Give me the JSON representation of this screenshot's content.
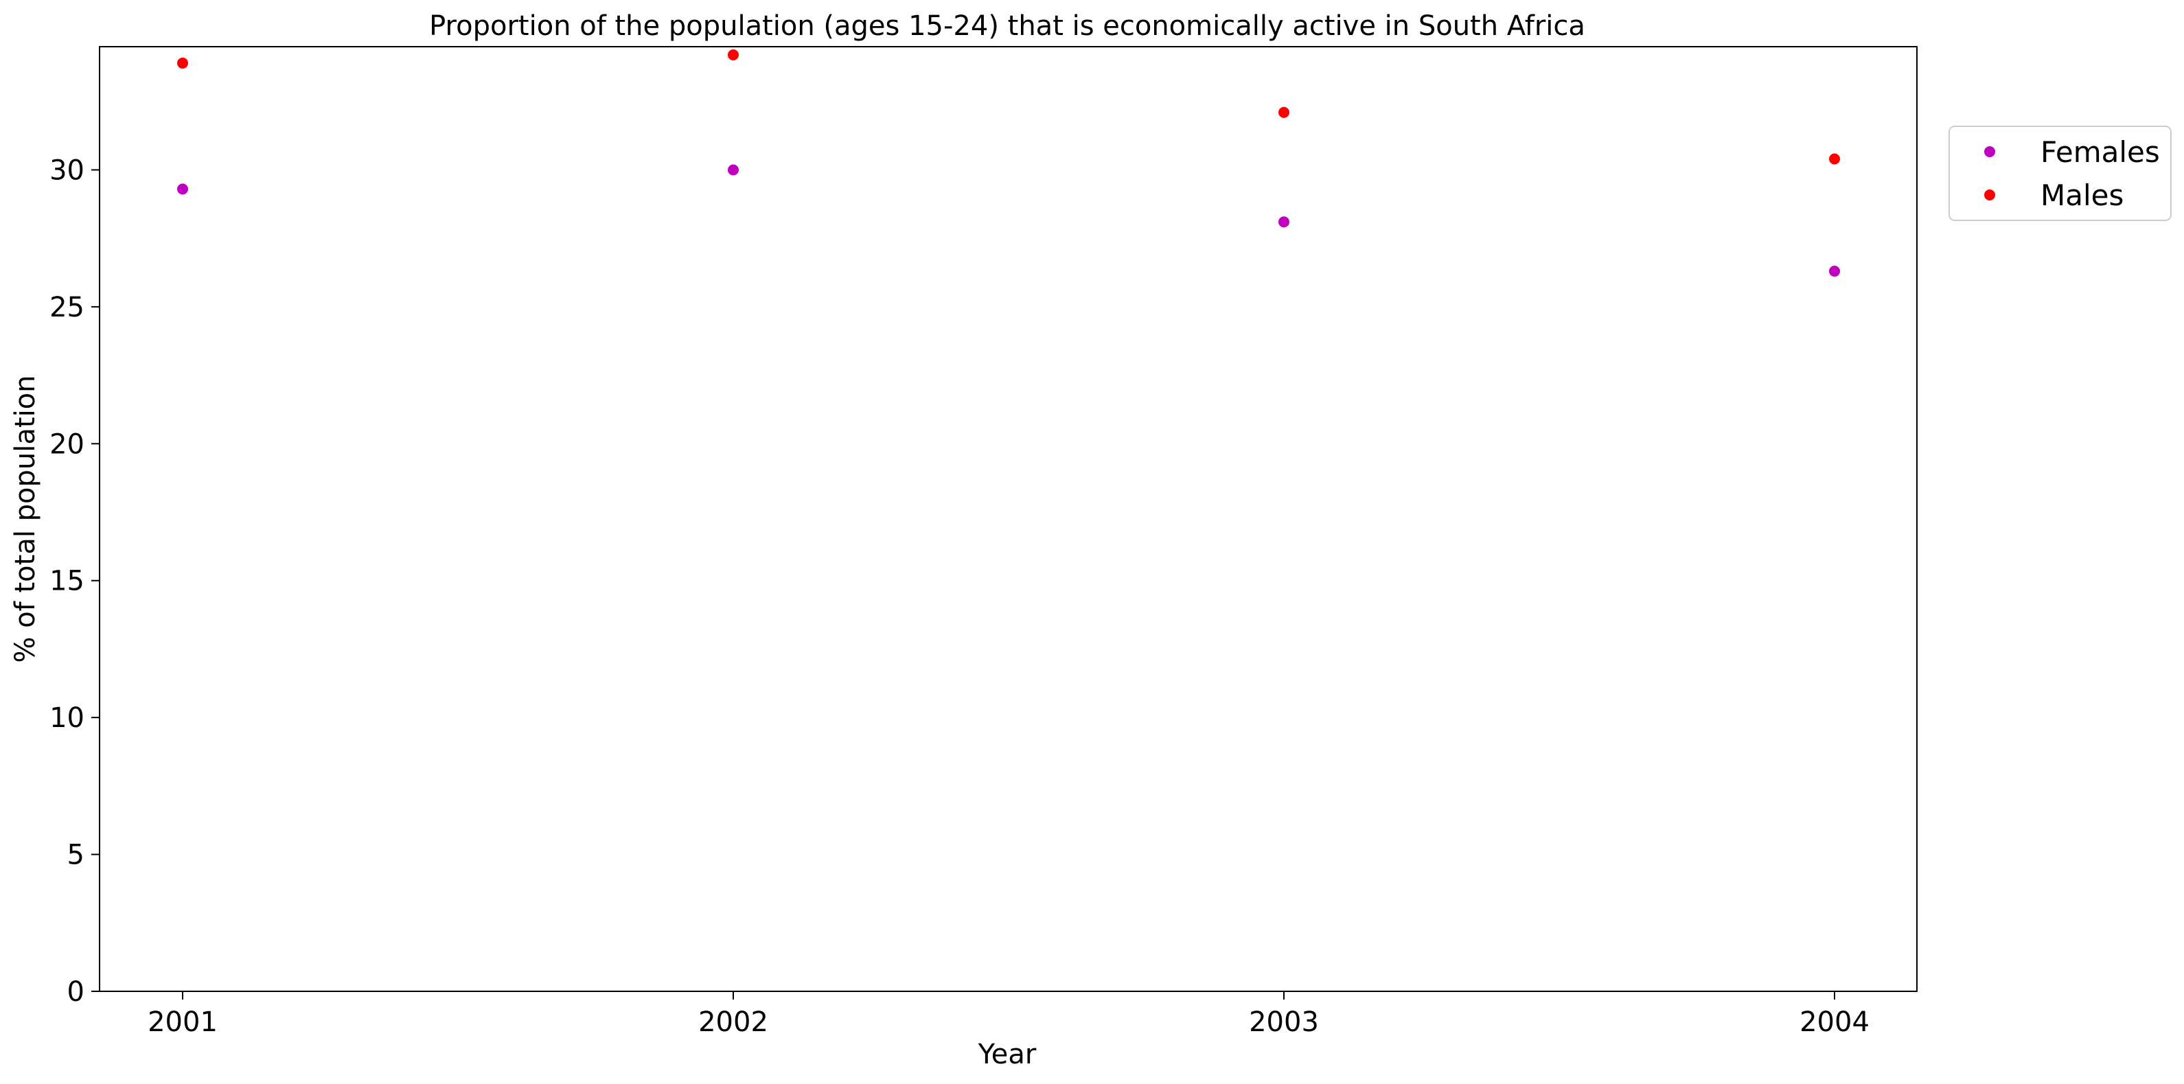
{
  "chart_data": {
    "type": "scatter",
    "title": "Proportion of the population (ages 15-24) that is economically active in South Africa",
    "xlabel": "Year",
    "ylabel": "% of total population",
    "categories": [
      "2001",
      "2002",
      "2003",
      "2004"
    ],
    "x_ticks": [
      "2001",
      "2002",
      "2003",
      "2004"
    ],
    "y_ticks": [
      "0",
      "5",
      "10",
      "15",
      "20",
      "25",
      "30"
    ],
    "ylim": [
      0,
      34.5
    ],
    "grid": false,
    "legend_position": "upper-right-outside",
    "series": [
      {
        "name": "Females",
        "color": "#bf00bf",
        "values": [
          29.3,
          30.0,
          28.1,
          26.3
        ]
      },
      {
        "name": "Males",
        "color": "#ff0000",
        "values": [
          33.9,
          34.2,
          32.1,
          30.4
        ]
      }
    ]
  }
}
